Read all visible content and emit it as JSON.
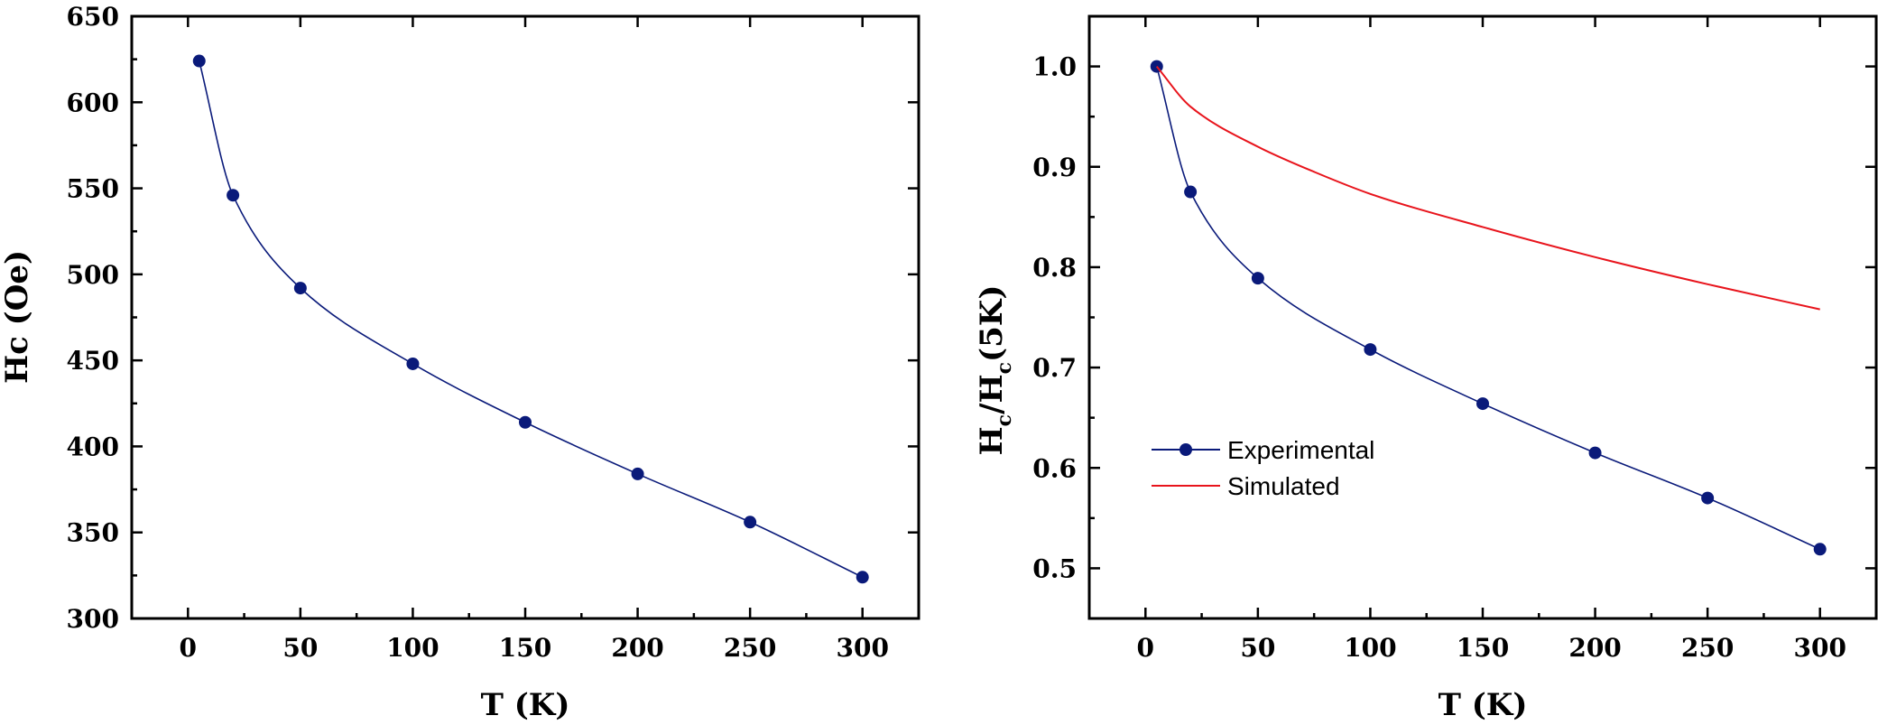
{
  "colors": {
    "experimental": "#0a1a7a",
    "simulated": "#e8141c",
    "axis": "#000000"
  },
  "chart_data": [
    {
      "type": "line",
      "xlabel": "T (K)",
      "ylabel": "Hc (Oe)",
      "xlim": [
        -25,
        325
      ],
      "ylim": [
        300,
        650
      ],
      "xticks": [
        0,
        50,
        100,
        150,
        200,
        250,
        300
      ],
      "yticks": [
        300,
        350,
        400,
        450,
        500,
        550,
        600,
        650
      ],
      "series": [
        {
          "name": "Experimental",
          "x": [
            5,
            20,
            50,
            100,
            150,
            200,
            250,
            300
          ],
          "y": [
            624,
            546,
            492,
            448,
            414,
            384,
            356,
            324
          ]
        }
      ],
      "legend": null
    },
    {
      "type": "line",
      "xlabel": "T (K)",
      "ylabel_main": "H",
      "ylabel_sub1": "c",
      "ylabel_mid": "/H",
      "ylabel_sub2": "c",
      "ylabel_tail": "(5K)",
      "xlim": [
        -25,
        325
      ],
      "ylim": [
        0.45,
        1.05
      ],
      "xticks": [
        0,
        50,
        100,
        150,
        200,
        250,
        300
      ],
      "yticks": [
        0.5,
        0.6,
        0.7,
        0.8,
        0.9,
        1.0
      ],
      "ytick_labels": [
        "0.5",
        "0.6",
        "0.7",
        "0.8",
        "0.9",
        "1.0"
      ],
      "series": [
        {
          "name": "Experimental",
          "x": [
            5,
            20,
            50,
            100,
            150,
            200,
            250,
            300
          ],
          "y": [
            1.0,
            0.875,
            0.789,
            0.718,
            0.664,
            0.615,
            0.57,
            0.519
          ]
        },
        {
          "name": "Simulated",
          "x": [
            5,
            20,
            50,
            75,
            100,
            150,
            200,
            250,
            300
          ],
          "y": [
            1.0,
            0.96,
            0.92,
            0.895,
            0.873,
            0.84,
            0.81,
            0.783,
            0.758
          ]
        }
      ],
      "legend": [
        "Experimental",
        "Simulated"
      ]
    }
  ]
}
